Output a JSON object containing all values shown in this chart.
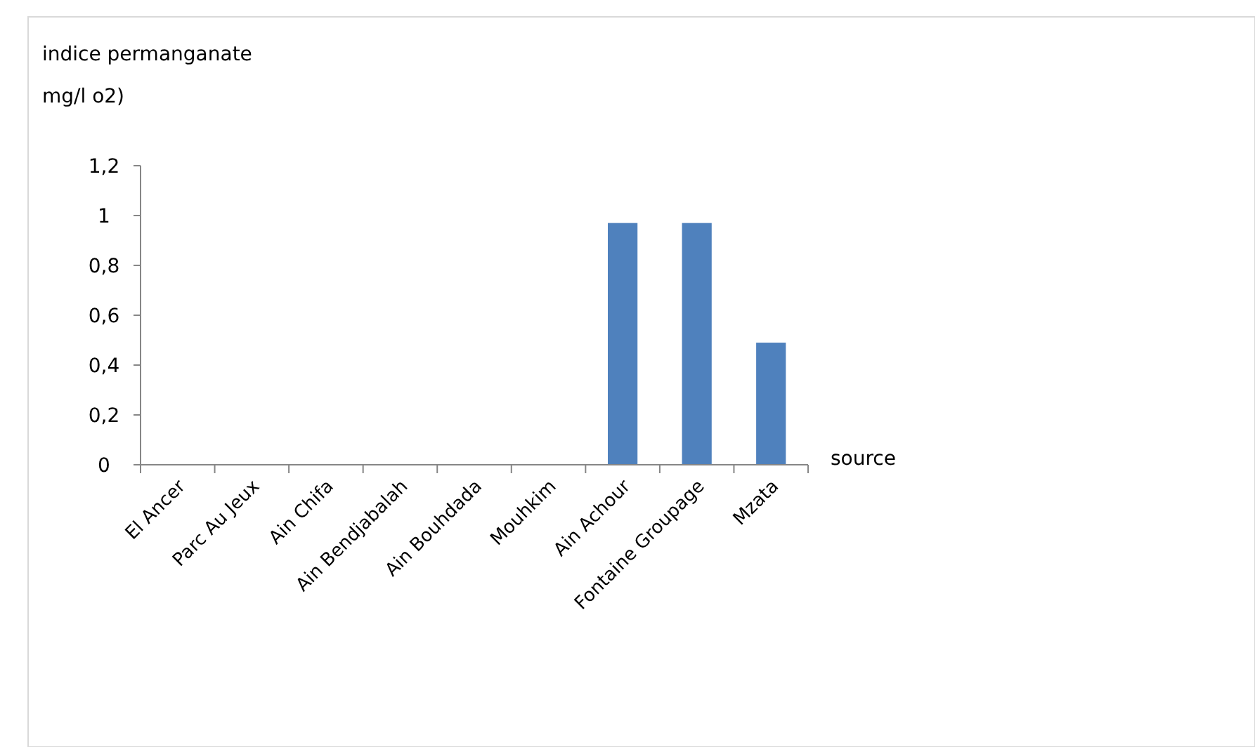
{
  "chart_data": {
    "type": "bar",
    "ylabel": "indice permanganate mg/l o2)",
    "xlabel": "source",
    "categories": [
      "El Ancer",
      "Parc Au Jeux",
      "Ain Chifa",
      "Ain Bendjabalah",
      "Ain Bouhdada",
      "Mouhkim",
      "Ain Achour",
      "Fontaine Groupage",
      "Mzata"
    ],
    "values": [
      0,
      0,
      0,
      0,
      0,
      0,
      0.97,
      0.97,
      0.49
    ],
    "color": "#4f81bd",
    "ylim": [
      0,
      1.2
    ],
    "yticks": [
      {
        "value": 0,
        "label": "0"
      },
      {
        "value": 0.2,
        "label": "0,2"
      },
      {
        "value": 0.4,
        "label": "0,4"
      },
      {
        "value": 0.6,
        "label": "0,6"
      },
      {
        "value": 0.8,
        "label": "0,8"
      },
      {
        "value": 1,
        "label": "1"
      },
      {
        "value": 1.2,
        "label": "1,2"
      }
    ]
  }
}
